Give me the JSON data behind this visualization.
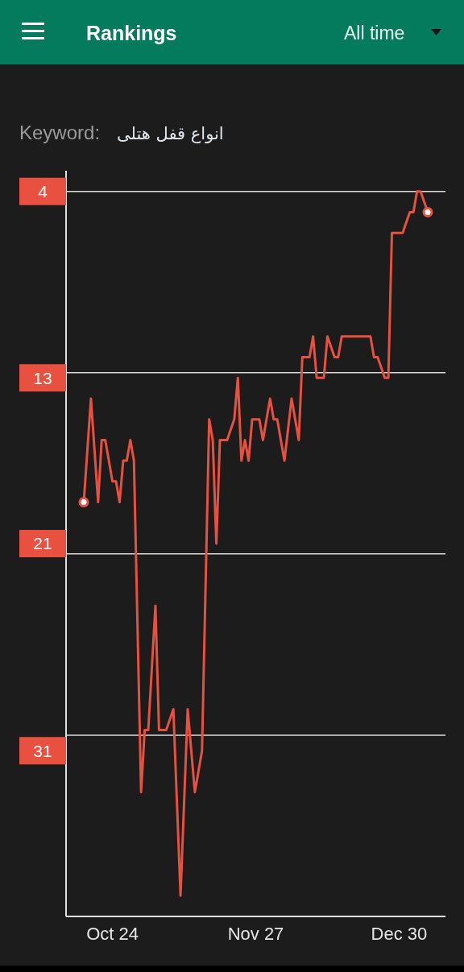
{
  "chart_data": {
    "type": "line",
    "title": "Rankings",
    "annotations": [
      "All time",
      "Keyword:",
      "انواع قفل هتلی"
    ],
    "categories": [
      null,
      null,
      null,
      null,
      null,
      null,
      null,
      null,
      "Oct 24",
      null,
      null,
      null,
      null,
      null,
      null,
      null,
      null,
      null,
      null,
      null,
      null,
      null,
      null,
      null,
      null,
      null,
      null,
      null,
      null,
      null,
      null,
      null,
      null,
      null,
      null,
      null,
      null,
      null,
      null,
      null,
      null,
      null,
      null,
      null,
      null,
      null,
      null,
      null,
      "Nov 27",
      null,
      null,
      null,
      null,
      null,
      null,
      null,
      null,
      null,
      null,
      null,
      null,
      null,
      null,
      null,
      null,
      null,
      null,
      null,
      null,
      null,
      null,
      null,
      null,
      null,
      null,
      null,
      null,
      null,
      null,
      null,
      null,
      null,
      null,
      null,
      null,
      null,
      null,
      null,
      "Dec 30",
      null,
      null,
      null,
      null,
      null,
      null,
      null,
      null
    ],
    "series": [
      {
        "color": "#e8503f",
        "values": [
          19,
          16.5,
          14,
          16.5,
          19,
          16,
          16,
          17,
          18,
          18,
          19,
          17,
          17,
          16,
          17,
          25,
          33,
          30,
          30,
          27,
          24,
          30,
          30,
          30,
          29.5,
          29,
          33.5,
          38,
          33.5,
          29,
          31,
          33,
          32,
          31,
          23,
          15,
          16,
          21,
          16,
          16,
          16,
          15.5,
          15,
          13,
          17,
          16,
          17,
          15,
          15,
          15,
          16,
          15,
          14,
          15,
          15,
          16,
          17,
          15.5,
          14,
          15,
          16,
          12,
          12,
          12,
          11,
          13,
          13,
          13,
          11,
          11.5,
          12,
          12,
          11,
          11,
          11,
          11,
          11,
          11,
          11,
          11,
          11,
          12,
          12,
          12.5,
          13,
          13,
          6,
          6,
          6,
          6,
          5.5,
          5,
          5,
          4,
          4,
          4.5,
          5
        ]
      },
      {
        "type": "scatter",
        "marker": "circle",
        "color": "#e8503f",
        "values": [
          19,
          null,
          null,
          null,
          null,
          null,
          null,
          null,
          null,
          null,
          null,
          null,
          null,
          null,
          null,
          null,
          null,
          null,
          null,
          null,
          null,
          null,
          null,
          null,
          null,
          null,
          null,
          null,
          null,
          null,
          null,
          null,
          null,
          null,
          null,
          null,
          null,
          null,
          null,
          null,
          null,
          null,
          null,
          null,
          null,
          null,
          null,
          null,
          null,
          null,
          null,
          null,
          null,
          null,
          null,
          null,
          null,
          null,
          null,
          null,
          null,
          null,
          null,
          null,
          null,
          null,
          null,
          null,
          null,
          null,
          null,
          null,
          null,
          null,
          null,
          null,
          null,
          null,
          null,
          null,
          null,
          null,
          null,
          null,
          null,
          null,
          null,
          null,
          null,
          null,
          null,
          null,
          null,
          null,
          null,
          null,
          5
        ]
      }
    ],
    "ylim": [
      39,
      3
    ],
    "yticks": [
      4,
      13,
      21,
      31
    ],
    "ref_lines": [
      {
        "axis": "y",
        "value": 4,
        "color": "#dcdcdc"
      },
      {
        "axis": "y",
        "value": 12.75,
        "color": "#dcdcdc"
      },
      {
        "axis": "y",
        "value": 21.5,
        "color": "#dcdcdc"
      },
      {
        "axis": "y",
        "value": 30.25,
        "color": "#dcdcdc"
      }
    ]
  }
}
